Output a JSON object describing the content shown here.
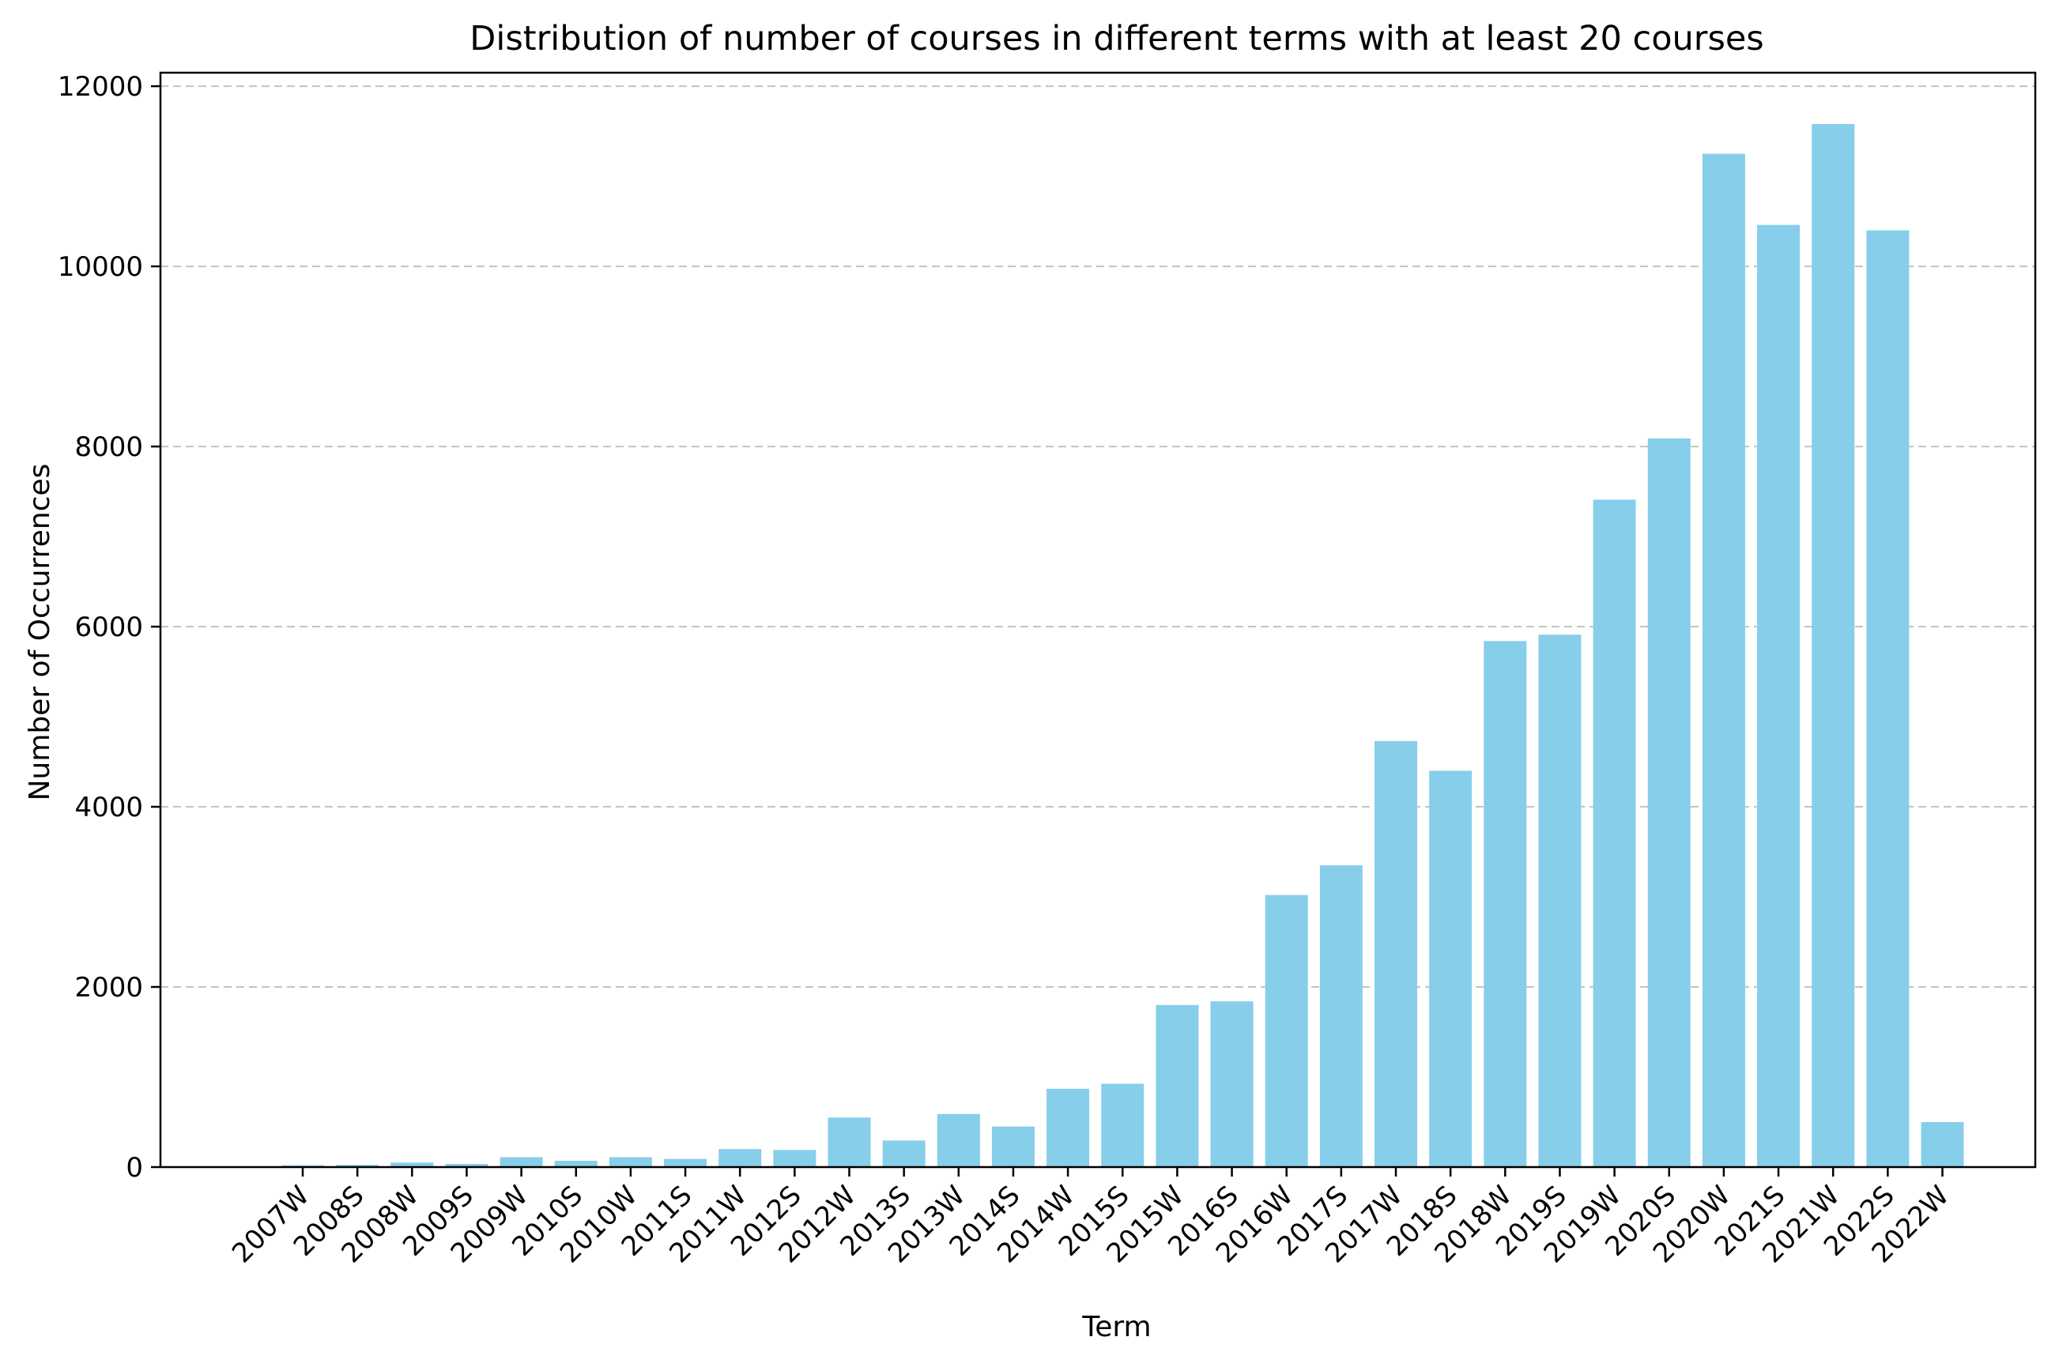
{
  "chart_data": {
    "type": "bar",
    "title": "Distribution of number of courses in different terms with at least 20 courses",
    "xlabel": "Term",
    "ylabel": "Number of Occurrences",
    "ylim": [
      0,
      12150
    ],
    "yticks": [
      0,
      2000,
      4000,
      6000,
      8000,
      10000,
      12000
    ],
    "grid": "y, dashed",
    "legend": "none",
    "bar_color": "#87CEEB",
    "categories": [
      "2007W",
      "2008S",
      "2008W",
      "2009S",
      "2009W",
      "2010S",
      "2010W",
      "2011S",
      "2011W",
      "2012S",
      "2012W",
      "2013S",
      "2013W",
      "2014S",
      "2014W",
      "2015S",
      "2015W",
      "2016S",
      "2016W",
      "2017S",
      "2017W",
      "2018S",
      "2018W",
      "2019S",
      "2019W",
      "2020S",
      "2020W",
      "2021S",
      "2021W",
      "2022S",
      "2022W"
    ],
    "values": [
      20,
      25,
      50,
      35,
      110,
      70,
      110,
      90,
      200,
      190,
      550,
      295,
      590,
      450,
      870,
      925,
      1800,
      1840,
      3020,
      3350,
      4730,
      4400,
      5840,
      5910,
      7410,
      8090,
      11250,
      10460,
      11580,
      10400,
      500
    ]
  }
}
